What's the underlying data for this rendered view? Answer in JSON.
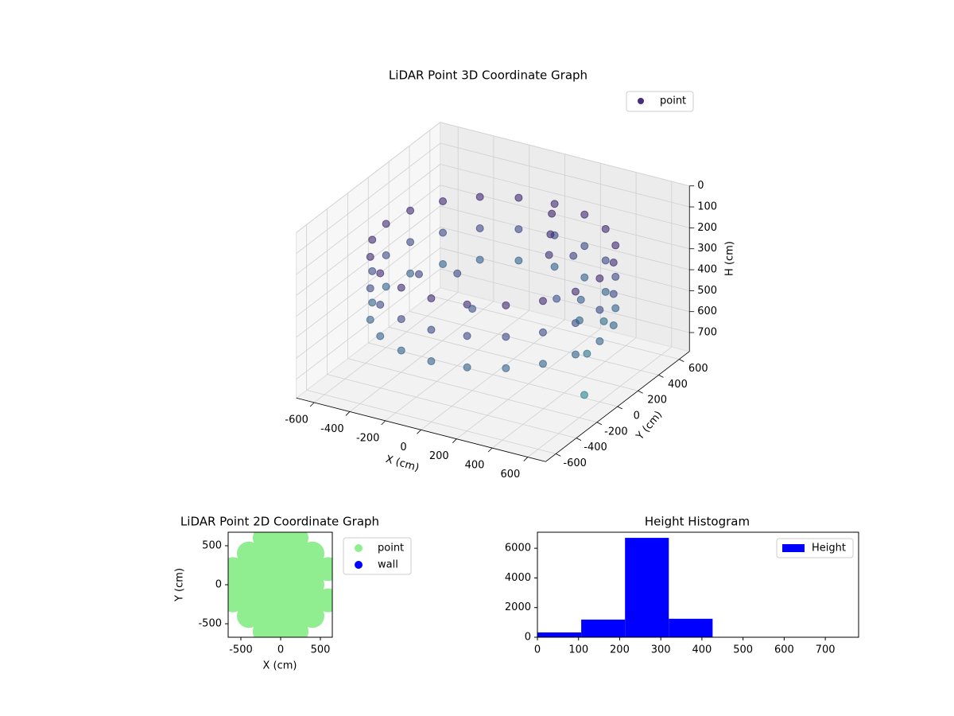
{
  "chart_data": [
    {
      "type": "scatter3d",
      "title": "LiDAR Point 3D Coordinate Graph",
      "xlabel": "X (cm)",
      "ylabel": "Y (cm)",
      "zlabel": "H (cm)",
      "xlim": [
        -700,
        700
      ],
      "ylim": [
        -700,
        700
      ],
      "zlim": [
        790,
        0
      ],
      "xticks": [
        -600,
        -400,
        -200,
        0,
        200,
        400,
        600
      ],
      "yticks": [
        -600,
        -400,
        -200,
        0,
        200,
        400,
        600
      ],
      "zticks": [
        0,
        100,
        200,
        300,
        400,
        500,
        600,
        700
      ],
      "colormap": [
        "#440154",
        "#3b528b",
        "#21918c"
      ],
      "legend": "upper right",
      "series": [
        {
          "name": "point",
          "color": "#472c7a",
          "x": [
            600,
            571,
            485,
            353,
            185,
            0,
            -185,
            -353,
            -485,
            -571,
            -600,
            -571,
            -485,
            -353,
            -185,
            0,
            185,
            353,
            485,
            571,
            600,
            571,
            485,
            353,
            185,
            0,
            -185,
            -353,
            -485,
            -571,
            -600,
            -571,
            -485,
            -353,
            -185,
            0,
            185,
            353,
            485,
            571,
            600,
            571,
            485,
            353,
            185,
            0,
            -185,
            -353,
            -485,
            -571,
            -600,
            -571,
            -485,
            -353,
            -185,
            0,
            185,
            353,
            485,
            571,
            150,
            200,
            250,
            300,
            350,
            400,
            450,
            500,
            100,
            -200,
            0,
            -300,
            600
          ],
          "y": [
            0,
            185,
            353,
            485,
            571,
            600,
            571,
            485,
            353,
            185,
            0,
            -185,
            -353,
            -485,
            -571,
            -600,
            -571,
            -485,
            -353,
            -185,
            0,
            185,
            353,
            485,
            571,
            600,
            571,
            485,
            353,
            185,
            0,
            -185,
            -353,
            -485,
            -571,
            -600,
            -571,
            -485,
            -353,
            -185,
            0,
            185,
            353,
            485,
            571,
            600,
            571,
            485,
            353,
            185,
            0,
            -185,
            -353,
            -485,
            -571,
            -600,
            -571,
            -485,
            -353,
            -185,
            300,
            200,
            350,
            100,
            250,
            150,
            300,
            50,
            400,
            0,
            -200,
            -200,
            -150
          ],
          "z": [
            200,
            200,
            200,
            200,
            200,
            200,
            200,
            200,
            200,
            200,
            200,
            200,
            200,
            200,
            200,
            200,
            200,
            200,
            200,
            200,
            350,
            350,
            350,
            350,
            350,
            350,
            350,
            350,
            350,
            350,
            350,
            350,
            350,
            350,
            350,
            350,
            350,
            350,
            350,
            350,
            500,
            500,
            500,
            500,
            500,
            500,
            500,
            500,
            500,
            500,
            500,
            500,
            500,
            500,
            500,
            500,
            500,
            500,
            500,
            500,
            200,
            250,
            300,
            400,
            450,
            500,
            550,
            600,
            150,
            350,
            400,
            300,
            700
          ]
        }
      ]
    },
    {
      "type": "scatter",
      "title": "LiDAR Point 2D Coordinate Graph",
      "xlabel": "X (cm)",
      "ylabel": "Y (cm)",
      "xlim": [
        -660,
        650
      ],
      "ylim": [
        -673,
        673
      ],
      "xticks": [
        -500,
        0,
        500
      ],
      "yticks": [
        -500,
        0,
        500
      ],
      "legend": "outside right",
      "series": [
        {
          "name": "point",
          "color": "#90ee90",
          "x": [
            -200,
            0,
            200,
            -400,
            -200,
            0,
            200,
            400,
            -600,
            -400,
            -200,
            0,
            200,
            400,
            600,
            -600,
            -400,
            -200,
            0,
            200,
            400,
            -600,
            -400,
            -200,
            0,
            200,
            400,
            600,
            -400,
            -200,
            0,
            200,
            400,
            -200,
            0,
            200
          ],
          "y": [
            600,
            600,
            600,
            400,
            400,
            400,
            400,
            400,
            200,
            200,
            200,
            200,
            200,
            200,
            200,
            0,
            0,
            0,
            0,
            0,
            0,
            -200,
            -200,
            -200,
            -200,
            -200,
            -200,
            -200,
            -400,
            -400,
            -400,
            -400,
            -400,
            -600,
            -600,
            -600
          ]
        },
        {
          "name": "wall",
          "color": "#0000ff",
          "x": [],
          "y": []
        }
      ]
    },
    {
      "type": "histogram",
      "title": "Height Histogram",
      "xlim": [
        0,
        781
      ],
      "ylim": [
        0,
        7080
      ],
      "xticks": [
        0,
        100,
        200,
        300,
        400,
        500,
        600,
        700
      ],
      "yticks": [
        0,
        2000,
        4000,
        6000
      ],
      "legend": "upper right",
      "series": [
        {
          "name": "Height",
          "color": "#0000ff",
          "bins": [
            0,
            106.5,
            213,
            319.5,
            426,
            532.5,
            639,
            745.5
          ],
          "counts": [
            325,
            1190,
            6700,
            1245,
            10,
            5,
            5
          ]
        }
      ]
    }
  ]
}
